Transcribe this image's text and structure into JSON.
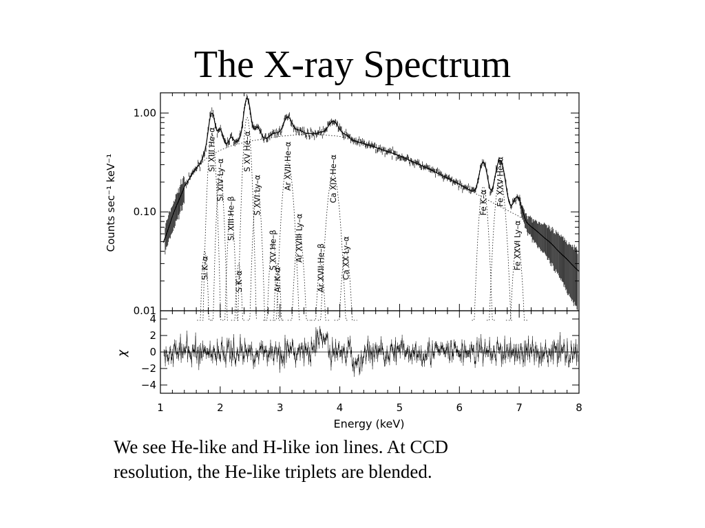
{
  "slide": {
    "title": "The X-ray Spectrum",
    "caption_lines": [
      "We see He-like and H-like ion lines. At CCD",
      "resolution, the He-like triplets are blended."
    ]
  },
  "chart_data": [
    {
      "type": "line",
      "panel": "spectrum",
      "xlabel": "Energy (keV)",
      "ylabel": "Counts sec⁻¹ keV⁻¹",
      "yscale": "log",
      "xlim": [
        1,
        8
      ],
      "ylim": [
        0.01,
        1.6
      ],
      "yticks": [
        0.01,
        0.1,
        1.0
      ],
      "ytick_labels": [
        "0.01",
        "0.10",
        "1.00"
      ],
      "continuum": {
        "x": [
          1.0,
          1.2,
          1.4,
          1.6,
          1.8,
          2.0,
          2.2,
          2.5,
          3.0,
          3.5,
          4.0,
          4.5,
          5.0,
          5.5,
          6.0,
          6.3,
          6.6,
          7.0,
          7.5,
          8.0
        ],
        "y": [
          0.04,
          0.09,
          0.18,
          0.28,
          0.36,
          0.42,
          0.47,
          0.52,
          0.58,
          0.62,
          0.58,
          0.47,
          0.37,
          0.27,
          0.19,
          0.15,
          0.12,
          0.09,
          0.05,
          0.025
        ]
      },
      "lines": [
        {
          "E": 1.74,
          "amp": 0.04,
          "w": 0.04,
          "label": "Si K–α"
        },
        {
          "E": 1.86,
          "amp": 0.62,
          "w": 0.05,
          "label": "Si XIII He–α"
        },
        {
          "E": 2.0,
          "amp": 0.25,
          "w": 0.045,
          "label": "Si XIV Ly–α"
        },
        {
          "E": 2.18,
          "amp": 0.1,
          "w": 0.045,
          "label": "Si XIII He–β"
        },
        {
          "E": 2.31,
          "amp": 0.03,
          "w": 0.04,
          "label": "S K–α"
        },
        {
          "E": 2.45,
          "amp": 0.9,
          "w": 0.05,
          "label": "S XV He–α"
        },
        {
          "E": 2.62,
          "amp": 0.18,
          "w": 0.05,
          "label": "S XVI Ly–α"
        },
        {
          "E": 2.88,
          "amp": 0.05,
          "w": 0.05,
          "label": "S XV He–β"
        },
        {
          "E": 2.96,
          "amp": 0.03,
          "w": 0.04,
          "label": "Ar K–α"
        },
        {
          "E": 3.13,
          "amp": 0.32,
          "w": 0.07,
          "label": "Ar XVII He–α"
        },
        {
          "E": 3.32,
          "amp": 0.06,
          "w": 0.06,
          "label": "Ar XVIII Ly–α"
        },
        {
          "E": 3.68,
          "amp": 0.03,
          "w": 0.05,
          "label": "Ar XVII He–β"
        },
        {
          "E": 3.89,
          "amp": 0.24,
          "w": 0.08,
          "label": "Ca XIX He–α"
        },
        {
          "E": 4.1,
          "amp": 0.04,
          "w": 0.06,
          "label": "Ca XX Ly–α"
        },
        {
          "E": 6.4,
          "amp": 0.18,
          "w": 0.06,
          "label": "Fe K–α"
        },
        {
          "E": 6.68,
          "amp": 0.22,
          "w": 0.07,
          "label": "Fe XXV He–α"
        },
        {
          "E": 6.97,
          "amp": 0.05,
          "w": 0.06,
          "label": "Fe XXVI Ly–α"
        }
      ]
    },
    {
      "type": "scatter",
      "panel": "residuals",
      "ylabel": "χ",
      "xlim": [
        1,
        8
      ],
      "ylim": [
        -5,
        5
      ],
      "yticks": [
        -4,
        -2,
        0,
        2,
        4
      ],
      "ytick_labels": [
        "−4",
        "−2",
        "0",
        "2",
        "4"
      ],
      "xticks": [
        1,
        2,
        3,
        4,
        5,
        6,
        7,
        8
      ],
      "xtick_labels": [
        "1",
        "2",
        "3",
        "4",
        "5",
        "6",
        "7",
        "8"
      ]
    }
  ]
}
